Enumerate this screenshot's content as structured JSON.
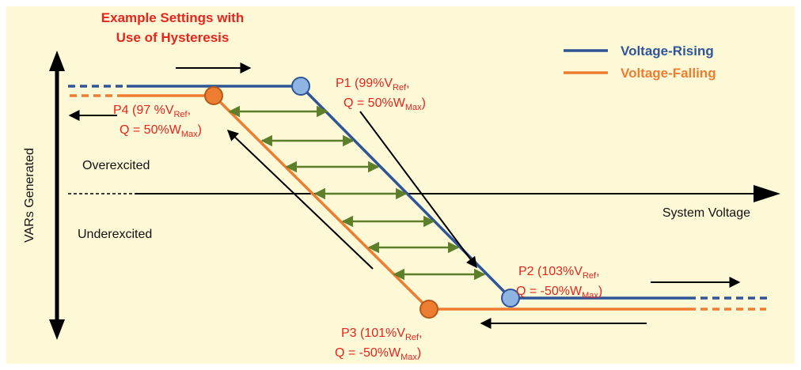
{
  "title": {
    "line1": "Example Settings with",
    "line2": "Use of Hysteresis"
  },
  "legend": [
    {
      "label": "Voltage-Rising",
      "color": "#2f5597"
    },
    {
      "label": "Voltage-Falling",
      "color": "#ed7d31"
    }
  ],
  "axes": {
    "y_label": "VARs Generated",
    "x_label": "System Voltage",
    "region_over": "Overexcited",
    "region_under": "Underexcited"
  },
  "points": {
    "p1": {
      "prefix": "P1 (99%V",
      "sub": "Ref",
      "sep": ",",
      "q": "Q = 50%W",
      "qsub": "Max",
      "end": ")"
    },
    "p2": {
      "prefix": "P2 (103%V",
      "sub": "Ref",
      "sep": ",",
      "q": "Q = -50%W",
      "qsub": "Max",
      "end": ")"
    },
    "p3": {
      "prefix": "P3 (101%V",
      "sub": "Ref",
      "sep": ",",
      "q": "Q = -50%W",
      "qsub": "Max",
      "end": ")"
    },
    "p4": {
      "prefix": "P4 (97 %V",
      "sub": "Ref",
      "sep": ",",
      "q": "Q = 50%W",
      "qsub": "Max",
      "end": ")"
    }
  },
  "colors": {
    "rising": "#2f5597",
    "falling": "#ed7d31",
    "point_rising": "#8eb4e3",
    "point_falling": "#ed7d31",
    "hysteresis_arrows": "#5e7f2a",
    "title": "#e8241c",
    "background": "#fdf8d6"
  }
}
